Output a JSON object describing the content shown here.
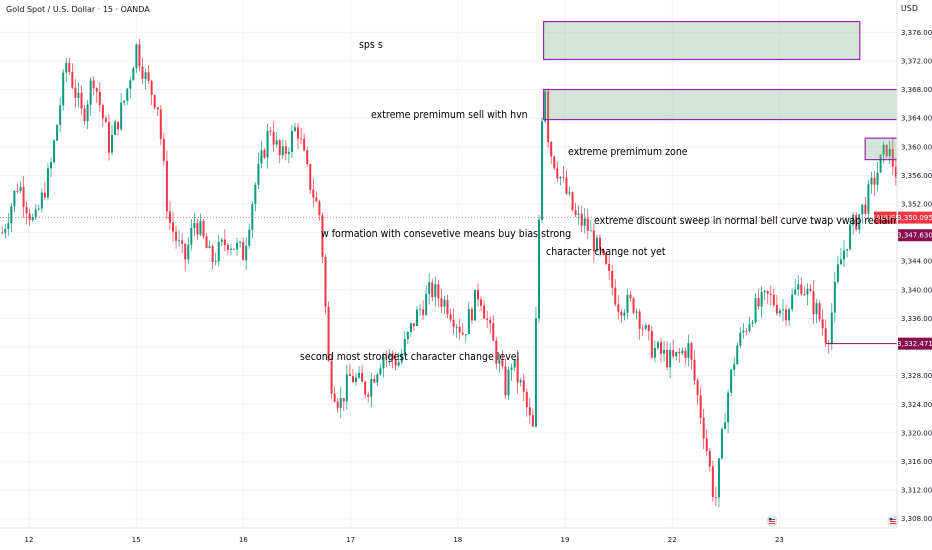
{
  "header": {
    "title": "Gold Spot / U.S. Dollar · 15 · OANDA"
  },
  "price_axis": {
    "unit": "USD"
  },
  "chart_data": {
    "type": "candlestick",
    "symbol": "XAUUSD",
    "ylim": [
      3306,
      3378
    ],
    "y_ticks": [
      "3,376.000",
      "3,372.000",
      "3,368.000",
      "3,364.000",
      "3,360.000",
      "3,356.000",
      "3,352.000",
      "3,348.000",
      "3,344.000",
      "3,340.000",
      "3,336.000",
      "3,332.000",
      "3,328.000",
      "3,324.000",
      "3,320.000",
      "3,316.000",
      "3,312.000",
      "3,308.000"
    ],
    "y_tick_values": [
      3376,
      3372,
      3368,
      3364,
      3360,
      3356,
      3352,
      3348,
      3344,
      3340,
      3336,
      3332,
      3328,
      3324,
      3320,
      3316,
      3312,
      3308
    ],
    "x_range": [
      11.75,
      24.0
    ],
    "x_ticks": [
      {
        "label": "12",
        "day": 12
      },
      {
        "label": "15",
        "day": 13
      },
      {
        "label": "16",
        "day": 14
      },
      {
        "label": "17",
        "day": 15
      },
      {
        "label": "18",
        "day": 16
      },
      {
        "label": "19",
        "day": 17
      },
      {
        "label": "22",
        "day": 18
      },
      {
        "label": "23",
        "day": 19
      }
    ],
    "path": [
      [
        11.75,
        3348
      ],
      [
        11.9,
        3355
      ],
      [
        12.05,
        3349
      ],
      [
        12.2,
        3357
      ],
      [
        12.35,
        3372
      ],
      [
        12.5,
        3364
      ],
      [
        12.6,
        3370
      ],
      [
        12.75,
        3360
      ],
      [
        12.9,
        3367
      ],
      [
        13.0,
        3374
      ],
      [
        13.1,
        3369
      ],
      [
        13.2,
        3366
      ],
      [
        13.3,
        3350
      ],
      [
        13.45,
        3344
      ],
      [
        13.55,
        3350
      ],
      [
        13.7,
        3344
      ],
      [
        13.85,
        3347
      ],
      [
        14.0,
        3345
      ],
      [
        14.1,
        3354
      ],
      [
        14.25,
        3363
      ],
      [
        14.35,
        3358
      ],
      [
        14.5,
        3363
      ],
      [
        14.6,
        3356
      ],
      [
        14.72,
        3350
      ],
      [
        14.8,
        3328
      ],
      [
        14.9,
        3324
      ],
      [
        15.0,
        3328
      ],
      [
        15.15,
        3326
      ],
      [
        15.3,
        3331
      ],
      [
        15.45,
        3330
      ],
      [
        15.6,
        3336
      ],
      [
        15.75,
        3340
      ],
      [
        15.9,
        3338
      ],
      [
        16.05,
        3334
      ],
      [
        16.2,
        3340
      ],
      [
        16.3,
        3334
      ],
      [
        16.45,
        3326
      ],
      [
        16.5,
        3330
      ],
      [
        16.6,
        3326
      ],
      [
        16.7,
        3320
      ],
      [
        16.8,
        3372
      ],
      [
        16.85,
        3360
      ],
      [
        16.95,
        3356
      ],
      [
        17.1,
        3350
      ],
      [
        17.2,
        3349
      ],
      [
        17.35,
        3344
      ],
      [
        17.5,
        3338
      ],
      [
        17.65,
        3338
      ],
      [
        17.8,
        3332
      ],
      [
        18.0,
        3330
      ],
      [
        18.15,
        3332
      ],
      [
        18.3,
        3320
      ],
      [
        18.4,
        3310
      ],
      [
        18.5,
        3324
      ],
      [
        18.6,
        3332
      ],
      [
        18.75,
        3337
      ],
      [
        18.9,
        3339
      ],
      [
        19.05,
        3337
      ],
      [
        19.2,
        3341
      ],
      [
        19.35,
        3337
      ],
      [
        19.45,
        3333
      ],
      [
        19.55,
        3343
      ],
      [
        19.65,
        3348
      ],
      [
        19.8,
        3352
      ],
      [
        19.9,
        3356
      ],
      [
        20.0,
        3360
      ],
      [
        20.1,
        3356
      ],
      [
        20.2,
        3353
      ],
      [
        20.3,
        3354
      ],
      [
        20.45,
        3350
      ],
      [
        20.55,
        3350
      ]
    ],
    "price_lines": [
      {
        "price": 3350.095,
        "label": "3,350.095",
        "name": "XAUUSD",
        "color": "#f23645"
      },
      {
        "price": 3347.63,
        "label": "3,347.630",
        "color": "#880e4f"
      },
      {
        "price": 3332.471,
        "label": "3,332.471",
        "color": "#880e4f"
      }
    ],
    "zones": [
      {
        "label": "sps s",
        "x0": 16.8,
        "x1": 19.75,
        "p0": 3377.5,
        "p1": 3372.2
      },
      {
        "label": "extreme premimum sell with hvn",
        "x0": 16.8,
        "x1": 20.6,
        "p0": 3368.0,
        "p1": 3363.8
      },
      {
        "label": "extreme premimum zone",
        "x0": 19.8,
        "x1": 21.15,
        "p0": 3361.2,
        "p1": 3358.2
      }
    ],
    "projection": [
      [
        20.6,
        3347.6
      ],
      [
        20.9,
        3360.5
      ],
      [
        21.05,
        3355.5
      ],
      [
        21.4,
        3367.5
      ]
    ],
    "annotations": [
      "extreme discount sweep in normal bell curve twap vwap reclaimed",
      "w formation with consevetive means buy bias strong",
      "character change not  yet",
      "second most strongest character change level"
    ],
    "grid": true
  }
}
